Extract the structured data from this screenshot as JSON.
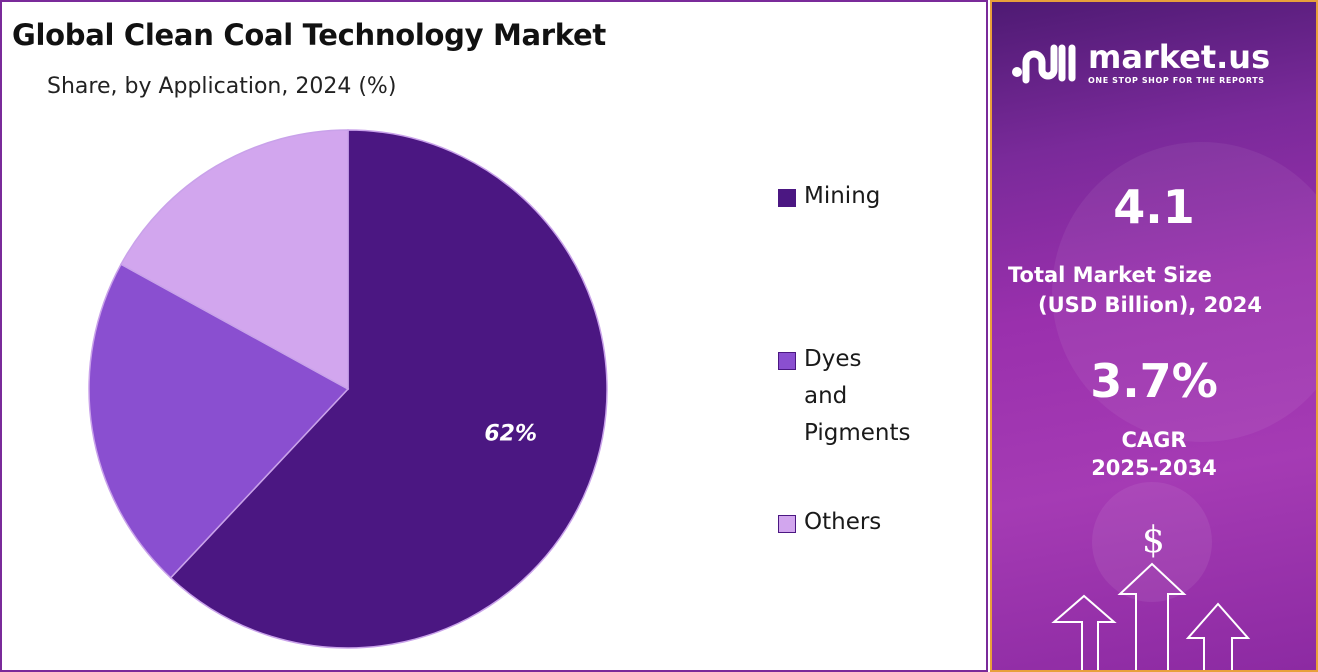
{
  "chart_panel": {
    "title": "Global Clean Coal Technology Market",
    "subtitle": "Share, by Application, 2024 (%)"
  },
  "chart_data": {
    "type": "pie",
    "title": "Global Clean Coal Technology Market",
    "subtitle": "Share, by Application, 2024 (%)",
    "slices": [
      {
        "label": "Mining",
        "value": 62,
        "color": "#4b1782",
        "data_label": "62%"
      },
      {
        "label": "Dyes and\nPigments",
        "value": 21,
        "color": "#8a4fd0",
        "data_label": ""
      },
      {
        "label": "Others",
        "value": 17,
        "color": "#d2a6ee",
        "data_label": ""
      }
    ],
    "legend_position": "right"
  },
  "side_panel": {
    "brand_name": "market.us",
    "brand_tagline": "ONE STOP SHOP FOR THE REPORTS",
    "market_size_value": "4.1",
    "market_size_label_line1": "Total Market Size",
    "market_size_label_line2": "(USD Billion), 2024",
    "cagr_value": "3.7%",
    "cagr_label_line1": "CAGR",
    "cagr_label_line2": "2025-2034",
    "currency_symbol": "$"
  },
  "colors": {
    "accent_dark": "#4b1782",
    "accent_mid": "#8a4fd0",
    "accent_light": "#d2a6ee",
    "panel_border": "#e8a03a"
  }
}
